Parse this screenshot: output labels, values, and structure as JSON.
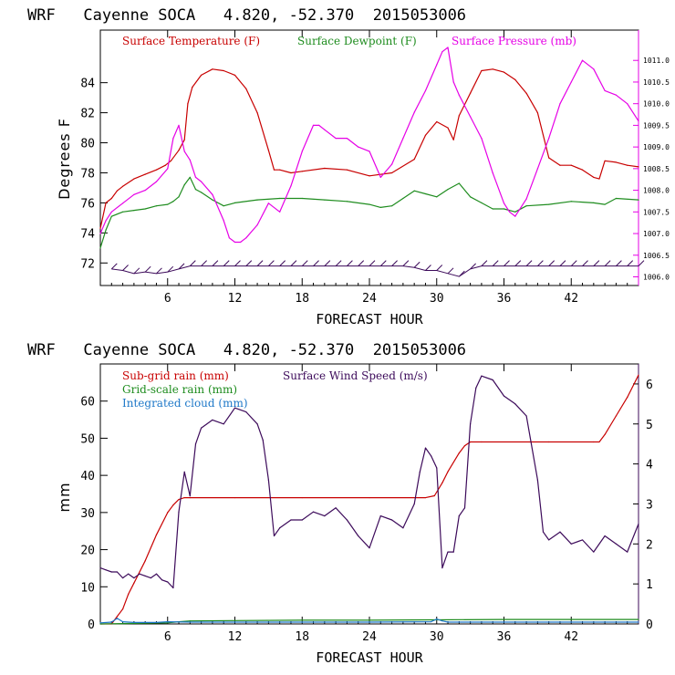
{
  "chart_data": [
    {
      "type": "line",
      "title": "WRF   Cayenne SOCA   4.820, -52.370  2015053006",
      "xlabel": "FORECAST HOUR",
      "ylabel": "Degrees F",
      "xlim": [
        0,
        48
      ],
      "ylim": [
        70.5,
        87.5
      ],
      "y2lim": [
        1005.8,
        1011.7
      ],
      "xticks": [
        6,
        12,
        18,
        24,
        30,
        36,
        42
      ],
      "xtick_labels": [
        "6",
        "12",
        "18",
        "24",
        "30",
        "36",
        "42"
      ],
      "yticks": [
        72,
        74,
        76,
        78,
        80,
        82,
        84
      ],
      "ytick_labels": [
        "72",
        "74",
        "76",
        "78",
        "80",
        "82",
        "84"
      ],
      "y2ticks": [
        1006.0,
        1006.5,
        1007.0,
        1007.5,
        1008.0,
        1008.5,
        1009.0,
        1009.5,
        1010.0,
        1010.5,
        1011.0
      ],
      "y2tick_labels": [
        "1006.0",
        "1006.5",
        "1007.0",
        "1007.5",
        "1008.0",
        "1008.5",
        "1009.0",
        "1009.5",
        "1010.0",
        "1010.5",
        "1011.0"
      ],
      "colors": {
        "temperature": "#c80000",
        "dewpoint": "#1e8c1e",
        "pressure": "#e600e6",
        "wind": "#3c0a5a"
      },
      "series": [
        {
          "name": "Surface Temperature (F)",
          "axis": "left",
          "x": [
            0,
            0.5,
            1,
            1.5,
            2,
            3,
            4,
            5,
            5.8,
            6.3,
            7,
            7.5,
            7.8,
            8.2,
            9,
            10,
            11,
            12,
            13,
            14,
            15,
            15.5,
            16,
            17,
            18,
            20,
            22,
            24,
            26,
            28,
            29,
            30,
            31,
            31.5,
            32,
            33,
            34,
            35,
            36,
            37,
            38,
            39,
            40,
            41,
            42,
            43,
            44,
            44.5,
            45,
            46,
            47,
            48
          ],
          "values": [
            74.3,
            76.0,
            76.3,
            76.8,
            77.1,
            77.6,
            77.9,
            78.2,
            78.5,
            78.8,
            79.5,
            80.2,
            82.6,
            83.7,
            84.5,
            84.9,
            84.8,
            84.5,
            83.6,
            82.0,
            79.5,
            78.2,
            78.2,
            78.0,
            78.1,
            78.3,
            78.2,
            77.8,
            78.0,
            78.9,
            80.5,
            81.4,
            81.0,
            80.2,
            81.8,
            83.3,
            84.8,
            84.9,
            84.7,
            84.2,
            83.3,
            82.0,
            79.0,
            78.5,
            78.5,
            78.2,
            77.7,
            77.6,
            78.8,
            78.7,
            78.5,
            78.4
          ]
        },
        {
          "name": "Surface Dewpoint (F)",
          "axis": "left",
          "x": [
            0,
            0.5,
            1,
            2,
            3,
            4,
            5,
            6,
            6.5,
            7,
            7.5,
            8,
            8.5,
            9,
            10,
            11,
            12,
            14,
            16,
            18,
            20,
            22,
            24,
            25,
            26,
            27,
            28,
            29,
            30,
            31,
            32,
            33,
            34,
            35,
            36,
            37,
            38,
            40,
            42,
            44,
            45,
            46,
            48
          ],
          "values": [
            73.0,
            74.2,
            75.1,
            75.4,
            75.5,
            75.6,
            75.8,
            75.9,
            76.1,
            76.4,
            77.2,
            77.7,
            76.9,
            76.7,
            76.2,
            75.8,
            76.0,
            76.2,
            76.3,
            76.3,
            76.2,
            76.1,
            75.9,
            75.7,
            75.8,
            76.3,
            76.8,
            76.6,
            76.4,
            76.9,
            77.3,
            76.4,
            76.0,
            75.6,
            75.6,
            75.4,
            75.8,
            75.9,
            76.1,
            76.0,
            75.9,
            76.3,
            76.2
          ]
        },
        {
          "name": "Surface Pressure (mb)",
          "axis": "right",
          "x": [
            0,
            0.5,
            1,
            2,
            3,
            4,
            5,
            6,
            6.5,
            7,
            7.5,
            8,
            8.5,
            9,
            10,
            11,
            11.5,
            12,
            12.5,
            13,
            14,
            15,
            16,
            17,
            18,
            19,
            19.5,
            20,
            21,
            22,
            23,
            24,
            25,
            26,
            27,
            28,
            29,
            30,
            30.5,
            31,
            31.5,
            32,
            33,
            34,
            35,
            36,
            36.5,
            37,
            38,
            39,
            40,
            41,
            42,
            43,
            44,
            45,
            46,
            47,
            48
          ],
          "values": [
            1007.0,
            1007.3,
            1007.5,
            1007.7,
            1007.9,
            1008.0,
            1008.2,
            1008.5,
            1009.2,
            1009.5,
            1008.9,
            1008.7,
            1008.3,
            1008.2,
            1007.9,
            1007.3,
            1006.9,
            1006.8,
            1006.8,
            1006.9,
            1007.2,
            1007.7,
            1007.5,
            1008.1,
            1008.9,
            1009.5,
            1009.5,
            1009.4,
            1009.2,
            1009.2,
            1009.0,
            1008.9,
            1008.3,
            1008.6,
            1009.2,
            1009.8,
            1010.3,
            1010.9,
            1011.2,
            1011.3,
            1010.5,
            1010.2,
            1009.7,
            1009.2,
            1008.4,
            1007.7,
            1007.5,
            1007.4,
            1007.8,
            1008.5,
            1009.2,
            1010.0,
            1010.5,
            1011.0,
            1010.8,
            1010.3,
            1010.2,
            1010.0,
            1009.6
          ]
        },
        {
          "name": "Wind barbs",
          "axis": "left",
          "marker": "barb",
          "x": [
            1,
            2,
            3,
            4,
            5,
            6,
            7,
            8,
            9,
            10,
            11,
            12,
            13,
            14,
            15,
            16,
            17,
            18,
            19,
            20,
            21,
            22,
            23,
            24,
            25,
            26,
            27,
            28,
            29,
            30,
            31,
            32,
            33,
            34,
            35,
            36,
            37,
            38,
            39,
            40,
            41,
            42,
            43,
            44,
            45,
            46,
            47,
            48
          ],
          "values": [
            71.6,
            71.5,
            71.3,
            71.4,
            71.3,
            71.4,
            71.6,
            71.8,
            71.8,
            71.8,
            71.8,
            71.8,
            71.8,
            71.8,
            71.8,
            71.8,
            71.8,
            71.8,
            71.8,
            71.8,
            71.8,
            71.8,
            71.8,
            71.8,
            71.8,
            71.8,
            71.8,
            71.7,
            71.5,
            71.5,
            71.3,
            71.1,
            71.6,
            71.8,
            71.8,
            71.8,
            71.8,
            71.8,
            71.8,
            71.8,
            71.8,
            71.8,
            71.8,
            71.8,
            71.8,
            71.8,
            71.8,
            71.8
          ]
        }
      ]
    },
    {
      "type": "line",
      "title": "WRF   Cayenne SOCA   4.820, -52.370  2015053006",
      "xlabel": "FORECAST HOUR",
      "ylabel": "mm",
      "xlim": [
        0,
        48
      ],
      "ylim": [
        0,
        70
      ],
      "y2lim": [
        0,
        6.5
      ],
      "xticks": [
        6,
        12,
        18,
        24,
        30,
        36,
        42
      ],
      "xtick_labels": [
        "6",
        "12",
        "18",
        "24",
        "30",
        "36",
        "42"
      ],
      "yticks": [
        0,
        10,
        20,
        30,
        40,
        50,
        60
      ],
      "ytick_labels": [
        "0",
        "10",
        "20",
        "30",
        "40",
        "50",
        "60"
      ],
      "y2ticks": [
        0,
        1,
        2,
        3,
        4,
        5,
        6
      ],
      "y2tick_labels": [
        "0",
        "1",
        "2",
        "3",
        "4",
        "5",
        "6"
      ],
      "colors": {
        "subgrid": "#c80000",
        "gridscale": "#1e8c1e",
        "cloud": "#1e78c8",
        "wind": "#3c0a5a"
      },
      "series": [
        {
          "name": "Sub-grid rain (mm)",
          "axis": "left",
          "x": [
            0,
            1,
            1.5,
            2,
            2.5,
            3,
            4,
            5,
            6,
            6.5,
            7,
            7.5,
            8,
            12,
            18,
            24,
            29,
            29.8,
            30.5,
            31,
            32,
            32.5,
            33,
            34,
            40,
            44,
            44.5,
            45,
            46,
            47,
            48
          ],
          "values": [
            0,
            0,
            2,
            4,
            8,
            11,
            17,
            24,
            30,
            32,
            33.5,
            34,
            34,
            34,
            34,
            34,
            34,
            34.5,
            38,
            41,
            46,
            48,
            49,
            49,
            49,
            49,
            49,
            51,
            56,
            61,
            67
          ]
        },
        {
          "name": "Grid-scale rain (mm)",
          "axis": "left",
          "x": [
            0,
            2,
            4,
            6,
            7,
            8,
            12,
            18,
            24,
            30,
            36,
            42,
            48
          ],
          "values": [
            0,
            0.1,
            0.2,
            0.3,
            0.6,
            0.8,
            0.9,
            1.0,
            1.0,
            1.1,
            1.2,
            1.2,
            1.2
          ]
        },
        {
          "name": "Integrated cloud (mm)",
          "axis": "left",
          "x": [
            0,
            1,
            1.5,
            2,
            3,
            5,
            6,
            8,
            12,
            18,
            24,
            29.5,
            30,
            30.5,
            31,
            32,
            36,
            42,
            48
          ],
          "values": [
            0.3,
            0.5,
            1.5,
            0.6,
            0.4,
            0.4,
            0.6,
            0.5,
            0.5,
            0.5,
            0.5,
            0.6,
            1.3,
            0.8,
            0.5,
            0.5,
            0.5,
            0.5,
            0.5
          ]
        },
        {
          "name": "Surface Wind Speed (m/s)",
          "axis": "right",
          "x": [
            0,
            0.5,
            1,
            1.5,
            2,
            2.5,
            3,
            3.5,
            4,
            4.5,
            5,
            5.5,
            6,
            6.5,
            7,
            7.5,
            8,
            8.5,
            9,
            10,
            11,
            12,
            13,
            14,
            14.5,
            15,
            15.5,
            16,
            17,
            18,
            19,
            20,
            21,
            22,
            23,
            24,
            25,
            26,
            27,
            28,
            28.5,
            29,
            29.5,
            30,
            30.5,
            31,
            31.5,
            32,
            32.5,
            33,
            33.5,
            34,
            35,
            36,
            37,
            38,
            39,
            39.5,
            40,
            41,
            42,
            43,
            44,
            45,
            46,
            47,
            48
          ],
          "values": [
            1.4,
            1.35,
            1.3,
            1.3,
            1.15,
            1.25,
            1.15,
            1.25,
            1.2,
            1.15,
            1.25,
            1.1,
            1.05,
            0.9,
            2.8,
            3.8,
            3.2,
            4.5,
            4.9,
            5.1,
            5.0,
            5.4,
            5.3,
            5.0,
            4.6,
            3.6,
            2.2,
            2.4,
            2.6,
            2.6,
            2.8,
            2.7,
            2.9,
            2.6,
            2.2,
            1.9,
            2.7,
            2.6,
            2.4,
            3.0,
            3.8,
            4.4,
            4.2,
            3.9,
            1.4,
            1.8,
            1.8,
            2.7,
            2.9,
            5.0,
            5.9,
            6.2,
            6.1,
            5.7,
            5.5,
            5.2,
            3.6,
            2.3,
            2.1,
            2.3,
            2.0,
            2.1,
            1.8,
            2.2,
            2.0,
            1.8,
            2.5
          ]
        }
      ]
    }
  ]
}
